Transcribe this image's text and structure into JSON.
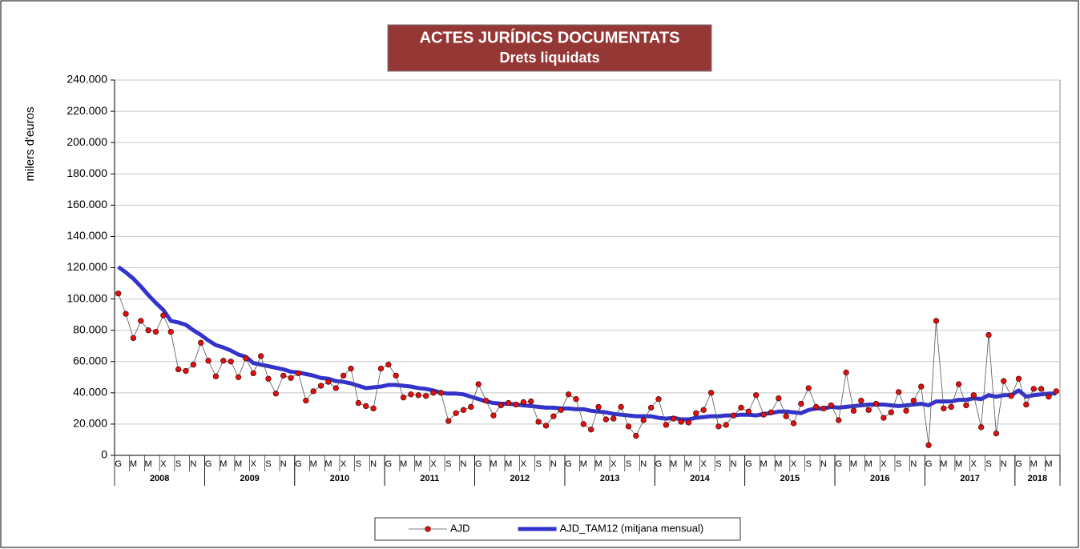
{
  "chart_data": {
    "type": "line",
    "title": "ACTES JURÍDICS DOCUMENTATS",
    "subtitle": "Drets liquidats",
    "y_label": "milers d'euros",
    "title_color": "#953735",
    "legend": "bottom",
    "grid": true,
    "ylim": [
      0,
      240000
    ],
    "yticks": [
      0,
      {
        "value": 20000,
        "label": "20.000"
      },
      {
        "value": 40000,
        "label": "40.000"
      },
      {
        "value": 60000,
        "label": "60.000"
      },
      {
        "value": 80000,
        "label": "80.000"
      },
      {
        "value": 100000,
        "label": "100.000"
      },
      {
        "value": 120000,
        "label": "120.000"
      },
      {
        "value": 140000,
        "label": "140.000"
      },
      {
        "value": 160000,
        "label": "160.000"
      },
      {
        "value": 180000,
        "label": "180.000"
      },
      {
        "value": 200000,
        "label": "200.000"
      },
      {
        "value": 220000,
        "label": "220.000"
      },
      {
        "value": 240000,
        "label": "240.000"
      }
    ],
    "year_labels": [
      "2008",
      "2009",
      "2010",
      "2011",
      "2012",
      "2013",
      "2014",
      "2015",
      "2016",
      "2017",
      "2018"
    ],
    "categories": [
      "G",
      null,
      "M",
      null,
      "M",
      null,
      "X",
      null,
      "S",
      null,
      "N",
      null,
      "G",
      null,
      "M",
      null,
      "M",
      null,
      "X",
      null,
      "S",
      null,
      "N",
      null,
      "G",
      null,
      "M",
      null,
      "M",
      null,
      "X",
      null,
      "S",
      null,
      "N",
      null,
      "G",
      null,
      "M",
      null,
      "M",
      null,
      "X",
      null,
      "S",
      null,
      "N",
      null,
      "G",
      null,
      "M",
      null,
      "M",
      null,
      "X",
      null,
      "S",
      null,
      "N",
      null,
      "G",
      null,
      "M",
      null,
      "M",
      null,
      "X",
      null,
      "S",
      null,
      "N",
      null,
      "G",
      null,
      "M",
      null,
      "M",
      null,
      "X",
      null,
      "S",
      null,
      "N",
      null,
      "G",
      null,
      "M",
      null,
      "M",
      null,
      "X",
      null,
      "S",
      null,
      "N",
      null,
      "G",
      null,
      "M",
      null,
      "M",
      null,
      "X",
      null,
      "S",
      null,
      "N",
      null,
      "G",
      null,
      "M",
      null,
      "M",
      null,
      "X",
      null,
      "S",
      null,
      "N",
      null,
      "G",
      null,
      "M",
      null,
      "M",
      null
    ],
    "series": [
      {
        "name": "AJD",
        "color": "#e01010",
        "line_color": "#555555",
        "style": "markers",
        "values": [
          103500,
          90500,
          75000,
          86000,
          80000,
          79000,
          89500,
          79000,
          55000,
          54000,
          58000,
          72000,
          60500,
          50500,
          60500,
          60000,
          50000,
          62000,
          52500,
          63500,
          49000,
          39500,
          51000,
          49500,
          52500,
          35000,
          41000,
          44500,
          47000,
          43000,
          51000,
          55500,
          33500,
          31500,
          30000,
          55500,
          58000,
          51000,
          37000,
          39000,
          38500,
          38000,
          40000,
          40000,
          22000,
          27000,
          29000,
          31000,
          45500,
          35000,
          25500,
          32000,
          33500,
          32500,
          34000,
          34500,
          21500,
          19000,
          25000,
          29000,
          39000,
          36000,
          20000,
          16500,
          31000,
          23000,
          23500,
          31000,
          18500,
          12500,
          22500,
          30500,
          36000,
          19500,
          23500,
          21500,
          21000,
          27000,
          29000,
          40000,
          18500,
          19500,
          25500,
          30500,
          28000,
          38500,
          26000,
          27500,
          36500,
          25000,
          20500,
          33000,
          43000,
          31000,
          30000,
          32000,
          22500,
          53000,
          28500,
          35000,
          29000,
          33000,
          24000,
          27500,
          40500,
          28500,
          35000,
          44000,
          6500,
          86000,
          30000,
          31000,
          45500,
          32000,
          38500,
          18000,
          77000,
          14000,
          47500,
          38000,
          49000,
          32500,
          42500,
          42500,
          37500,
          41000
        ]
      },
      {
        "name": "AJD_TAM12 (mitjana mensual)",
        "color": "#3333cc",
        "style": "thick",
        "values": [
          120500,
          117000,
          113000,
          108000,
          102500,
          97500,
          93000,
          86000,
          85000,
          83500,
          80000,
          77000,
          73500,
          70500,
          69000,
          67000,
          64500,
          63000,
          59000,
          58000,
          57000,
          56000,
          55000,
          53500,
          53000,
          52000,
          51000,
          49500,
          49000,
          47500,
          47000,
          46000,
          44500,
          43000,
          43500,
          44000,
          45000,
          45000,
          44500,
          44000,
          43000,
          42500,
          41500,
          40000,
          39500,
          39500,
          39000,
          37500,
          36000,
          34500,
          33500,
          33000,
          33000,
          32500,
          32000,
          31500,
          31000,
          30500,
          30500,
          30000,
          30000,
          29500,
          29500,
          28500,
          28000,
          27500,
          26500,
          26000,
          25500,
          25000,
          25000,
          25000,
          24000,
          23500,
          24000,
          23000,
          23000,
          24000,
          24500,
          25000,
          25000,
          25500,
          25500,
          26000,
          26000,
          25500,
          26500,
          27000,
          28000,
          28000,
          27500,
          27000,
          29000,
          30000,
          30000,
          31000,
          30500,
          31000,
          31500,
          32000,
          32500,
          32500,
          32500,
          32000,
          31500,
          32000,
          32500,
          33000,
          32000,
          34500,
          34500,
          34500,
          35500,
          35500,
          36500,
          36000,
          38500,
          37500,
          38500,
          38500,
          41500,
          37500,
          38500,
          39000,
          39500,
          39500
        ]
      }
    ]
  }
}
